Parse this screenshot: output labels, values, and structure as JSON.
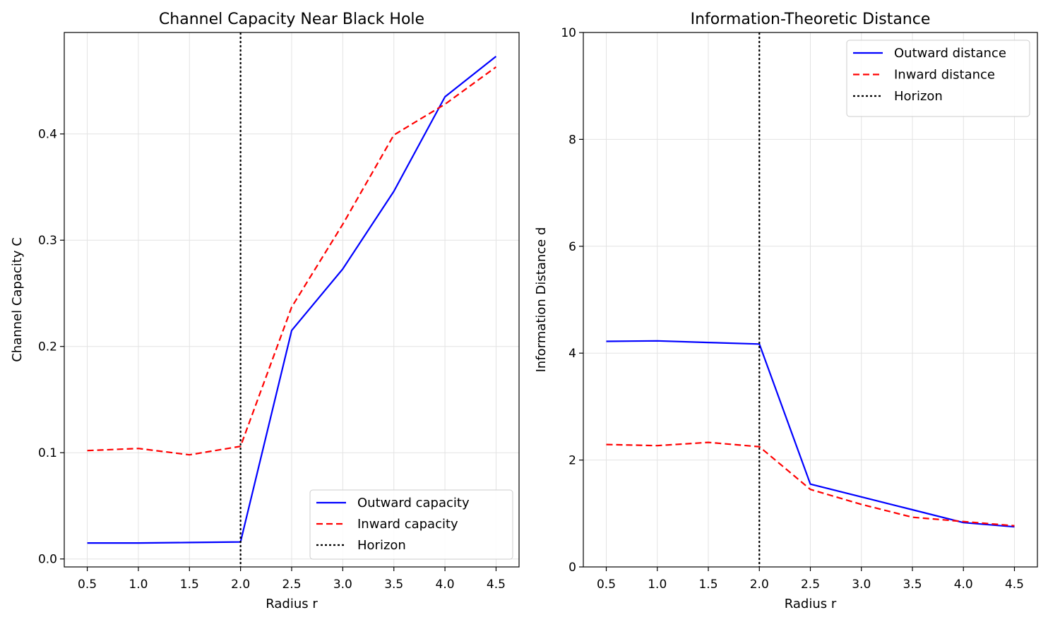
{
  "chart_data": [
    {
      "type": "line",
      "title": "Channel Capacity Near Black Hole",
      "xlabel": "Radius r",
      "ylabel": "Channel Capacity C",
      "xlim": [
        0.275,
        4.725
      ],
      "ylim": [
        -0.0075,
        0.4955
      ],
      "xticks": [
        0.5,
        1.0,
        1.5,
        2.0,
        2.5,
        3.0,
        3.5,
        4.0,
        4.5
      ],
      "xtick_labels": [
        "0.5",
        "1.0",
        "1.5",
        "2.0",
        "2.5",
        "3.0",
        "3.5",
        "4.0",
        "4.5"
      ],
      "yticks": [
        0.0,
        0.1,
        0.2,
        0.3,
        0.4
      ],
      "ytick_labels": [
        "0.0",
        "0.1",
        "0.2",
        "0.3",
        "0.4"
      ],
      "grid": true,
      "legend_position": "lower-right",
      "x": [
        0.5,
        1.0,
        1.5,
        2.0,
        2.5,
        3.0,
        3.5,
        4.0,
        4.5
      ],
      "series": [
        {
          "name": "Outward capacity",
          "values": [
            0.015,
            0.015,
            0.0155,
            0.016,
            0.215,
            0.273,
            0.346,
            0.435,
            0.473
          ],
          "color": "#0000ff",
          "dash": "solid"
        },
        {
          "name": "Inward capacity",
          "values": [
            0.102,
            0.104,
            0.098,
            0.106,
            0.237,
            0.315,
            0.399,
            0.428,
            0.463
          ],
          "color": "#ff0000",
          "dash": "dashed"
        }
      ],
      "vline": {
        "name": "Horizon",
        "x": 2.0,
        "color": "#000000",
        "dash": "dotted"
      }
    },
    {
      "type": "line",
      "title": "Information-Theoretic Distance",
      "xlabel": "Radius r",
      "ylabel": "Information Distance d",
      "xlim": [
        0.275,
        4.725
      ],
      "ylim": [
        0,
        10
      ],
      "xticks": [
        0.5,
        1.0,
        1.5,
        2.0,
        2.5,
        3.0,
        3.5,
        4.0,
        4.5
      ],
      "xtick_labels": [
        "0.5",
        "1.0",
        "1.5",
        "2.0",
        "2.5",
        "3.0",
        "3.5",
        "4.0",
        "4.5"
      ],
      "yticks": [
        0,
        2,
        4,
        6,
        8,
        10
      ],
      "ytick_labels": [
        "0",
        "2",
        "4",
        "6",
        "8",
        "10"
      ],
      "grid": true,
      "legend_position": "upper-right",
      "x": [
        0.5,
        1.0,
        1.5,
        2.0,
        2.5,
        3.0,
        3.5,
        4.0,
        4.5
      ],
      "series": [
        {
          "name": "Outward distance",
          "values": [
            4.22,
            4.23,
            4.2,
            4.17,
            1.55,
            1.31,
            1.07,
            0.83,
            0.75
          ],
          "color": "#0000ff",
          "dash": "solid"
        },
        {
          "name": "Inward distance",
          "values": [
            2.29,
            2.27,
            2.33,
            2.25,
            1.45,
            1.17,
            0.93,
            0.85,
            0.77
          ],
          "color": "#ff0000",
          "dash": "dashed"
        }
      ],
      "vline": {
        "name": "Horizon",
        "x": 2.0,
        "color": "#000000",
        "dash": "dotted"
      }
    }
  ]
}
